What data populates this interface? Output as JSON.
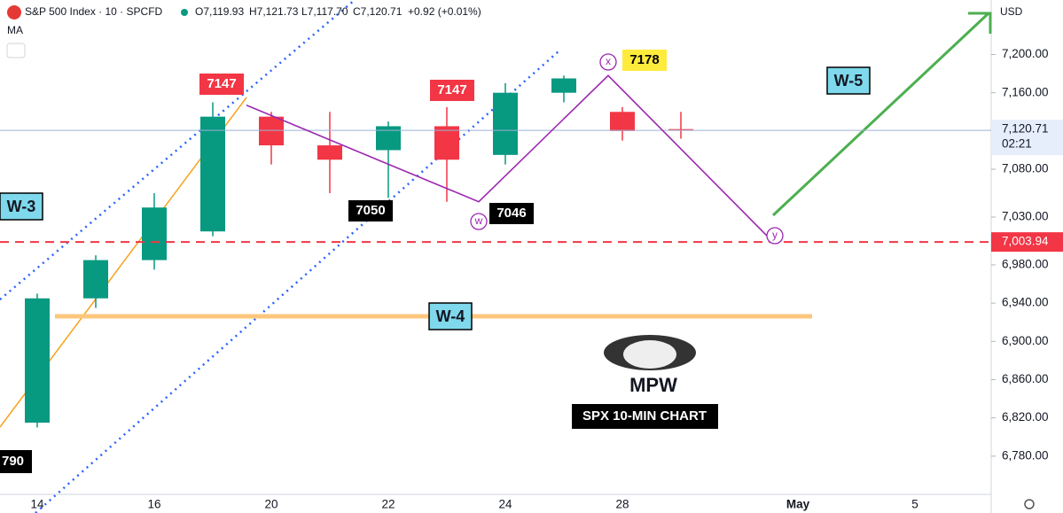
{
  "header": {
    "symbol": "S&P 500 Index · 10 · SPCFD",
    "open": "O7,119.93",
    "high": "H7,121.73",
    "low": "L7,117.70",
    "close": "C7,120.71",
    "change": "+0.92 (+0.01%)",
    "indicator": "MA",
    "currency": "USD"
  },
  "chart_data": {
    "type": "candlestick",
    "categories": [
      "14",
      null,
      "16",
      null,
      "20",
      null,
      "22",
      null,
      "24",
      null,
      "28",
      null,
      null,
      "May",
      null,
      "5"
    ],
    "open": [
      6815,
      6945,
      6985,
      7015,
      7135,
      7105,
      7100,
      7125,
      7095,
      7160,
      7140,
      7122,
      null,
      null,
      null,
      null
    ],
    "high": [
      6950,
      6990,
      7055,
      7150,
      7140,
      7140,
      7130,
      7145,
      7170,
      7178,
      7145,
      7140,
      null,
      null,
      null,
      null
    ],
    "low": [
      6810,
      6935,
      6975,
      7010,
      7085,
      7055,
      7050,
      7046,
      7085,
      7150,
      7110,
      7112,
      null,
      null,
      null,
      null
    ],
    "close": [
      6945,
      6985,
      7040,
      7135,
      7105,
      7090,
      7125,
      7090,
      7160,
      7175,
      7120,
      7121,
      null,
      null,
      null,
      null
    ],
    "up_color": "#089981",
    "down_color": "#f23645",
    "ylim": [
      6740,
      7257
    ],
    "yticks": [
      {
        "value": 7200,
        "label": "7,200.00"
      },
      {
        "value": 7160,
        "label": "7,160.00"
      },
      {
        "value": 7080,
        "label": "7,080.00"
      },
      {
        "value": 7030,
        "label": "7,030.00"
      },
      {
        "value": 6980,
        "label": "6,980.00"
      },
      {
        "value": 6940,
        "label": "6,940.00"
      },
      {
        "value": 6900,
        "label": "6,900.00"
      },
      {
        "value": 6860,
        "label": "6,860.00"
      },
      {
        "value": 6820,
        "label": "6,820.00"
      },
      {
        "value": 6780,
        "label": "6,780.00"
      }
    ],
    "last_price": {
      "value": 7120.71,
      "label": "7,120.71"
    },
    "countdown": "02:21",
    "level": {
      "value": 7003.94,
      "label": "7,003.94"
    },
    "pivots": [
      7147,
      7147,
      7178,
      7050,
      7046
    ],
    "wave_labels": [
      "W-3",
      "W-4",
      "W-5",
      "x",
      "w",
      "y"
    ],
    "edge_label": 790,
    "logo": "MPW",
    "caption": "SPX 10-MIN CHART"
  }
}
